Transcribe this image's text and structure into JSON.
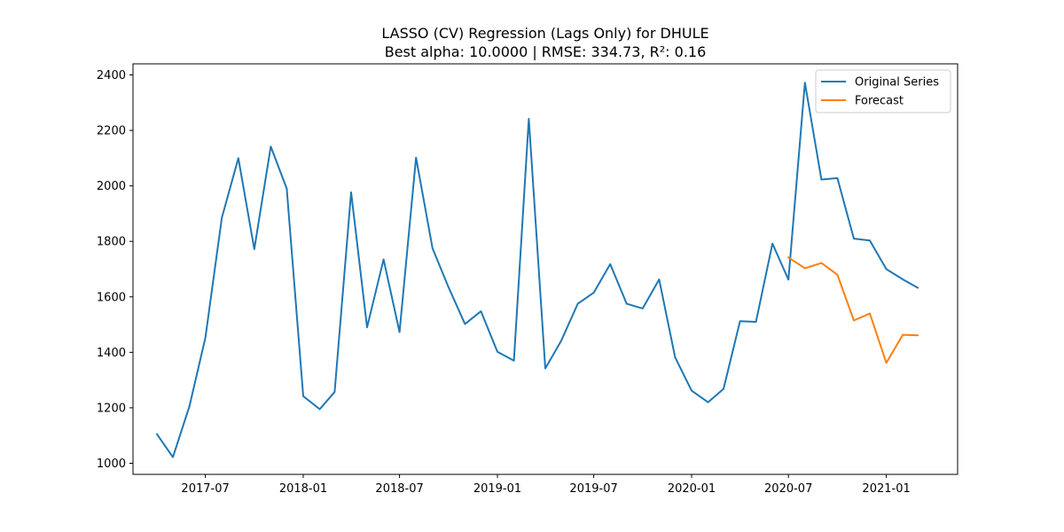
{
  "chart_data": {
    "type": "line",
    "title": "LASSO (CV) Regression (Lags Only) for DHULE",
    "subtitle": "Best alpha: 10.0000 | RMSE: 334.73, R²: 0.16",
    "xlabel": "",
    "ylabel": "",
    "ylim": [
      960,
      2440
    ],
    "xlim": [
      "2017-02-15",
      "2021-05-15"
    ],
    "yticks": [
      1000,
      1200,
      1400,
      1600,
      1800,
      2000,
      2200,
      2400
    ],
    "xticks": [
      {
        "date": "2017-07-01",
        "label": "2017-07"
      },
      {
        "date": "2018-01-01",
        "label": "2018-01"
      },
      {
        "date": "2018-07-01",
        "label": "2018-07"
      },
      {
        "date": "2019-01-01",
        "label": "2019-01"
      },
      {
        "date": "2019-07-01",
        "label": "2019-07"
      },
      {
        "date": "2020-01-01",
        "label": "2020-01"
      },
      {
        "date": "2020-07-01",
        "label": "2020-07"
      },
      {
        "date": "2021-01-01",
        "label": "2021-01"
      }
    ],
    "grid": false,
    "legend_position": "top-right",
    "series": [
      {
        "name": "Original Series",
        "color": "#1f77b4",
        "x": [
          "2017-04-01",
          "2017-05-01",
          "2017-06-01",
          "2017-07-01",
          "2017-08-01",
          "2017-09-01",
          "2017-10-01",
          "2017-11-01",
          "2017-12-01",
          "2018-01-01",
          "2018-02-01",
          "2018-03-01",
          "2018-04-01",
          "2018-05-01",
          "2018-06-01",
          "2018-07-01",
          "2018-08-01",
          "2018-09-01",
          "2018-10-01",
          "2018-11-01",
          "2018-12-01",
          "2019-01-01",
          "2019-02-01",
          "2019-03-01",
          "2019-04-01",
          "2019-05-01",
          "2019-06-01",
          "2019-07-01",
          "2019-08-01",
          "2019-09-01",
          "2019-10-01",
          "2019-11-01",
          "2019-12-01",
          "2020-01-01",
          "2020-02-01",
          "2020-03-01",
          "2020-04-01",
          "2020-05-01",
          "2020-06-01",
          "2020-07-01",
          "2020-08-01",
          "2020-09-01",
          "2020-10-01",
          "2020-11-01",
          "2020-12-01",
          "2021-01-01",
          "2021-02-01",
          "2021-03-01"
        ],
        "values": [
          1105,
          1022,
          1205,
          1452,
          1885,
          2100,
          1772,
          2142,
          1990,
          1242,
          1195,
          1257,
          1977,
          1490,
          1735,
          1473,
          2102,
          1775,
          1635,
          1502,
          1548,
          1402,
          1370,
          2242,
          1342,
          1442,
          1575,
          1615,
          1718,
          1575,
          1558,
          1663,
          1382,
          1262,
          1220,
          1268,
          1512,
          1510,
          1792,
          1662,
          2372,
          2023,
          2028,
          1810,
          1803,
          1700,
          1663,
          1633
        ]
      },
      {
        "name": "Forecast",
        "color": "#ff7f0e",
        "x": [
          "2020-07-01",
          "2020-08-01",
          "2020-09-01",
          "2020-10-01",
          "2020-11-01",
          "2020-12-01",
          "2021-01-01",
          "2021-02-01",
          "2021-03-01"
        ],
        "values": [
          1742,
          1703,
          1722,
          1680,
          1515,
          1540,
          1362,
          1463,
          1461
        ]
      }
    ]
  }
}
